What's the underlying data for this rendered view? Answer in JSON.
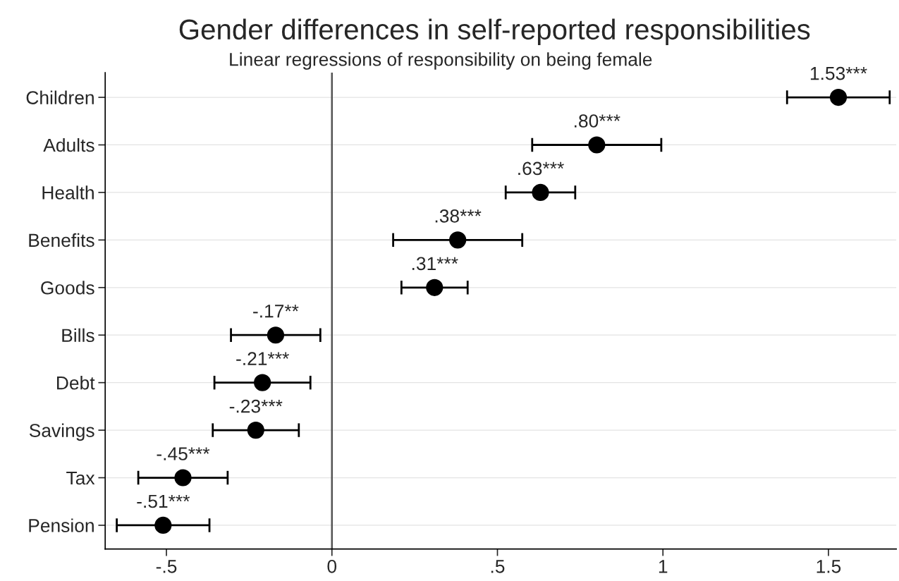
{
  "chart_data": {
    "type": "scatter",
    "orientation": "horizontal",
    "title": "Gender differences in self-reported responsibilities",
    "subtitle": "Linear regressions of responsibility on being female",
    "categories": [
      "Children",
      "Adults",
      "Health",
      "Benefits",
      "Goods",
      "Bills",
      "Debt",
      "Savings",
      "Tax",
      "Pension"
    ],
    "values": [
      1.53,
      0.8,
      0.63,
      0.38,
      0.31,
      -0.17,
      -0.21,
      -0.23,
      -0.45,
      -0.51
    ],
    "errors": [
      0.155,
      0.195,
      0.105,
      0.195,
      0.1,
      0.135,
      0.145,
      0.13,
      0.135,
      0.14
    ],
    "value_labels": [
      "1.53***",
      ".80***",
      ".63***",
      ".38***",
      ".31***",
      "-.17**",
      "-.21***",
      "-.23***",
      "-.45***",
      "-.51***"
    ],
    "color": "#000000",
    "marker": "circle",
    "grid": "y",
    "xlim": [
      -0.685,
      1.705
    ],
    "xticks": [
      {
        "value": -0.5,
        "label": "-.5"
      },
      0,
      {
        "value": 0.5,
        "label": ".5"
      },
      1,
      1.5
    ],
    "ref_lines": [
      {
        "axis": "x",
        "value": 0,
        "color": "#555555"
      }
    ]
  }
}
